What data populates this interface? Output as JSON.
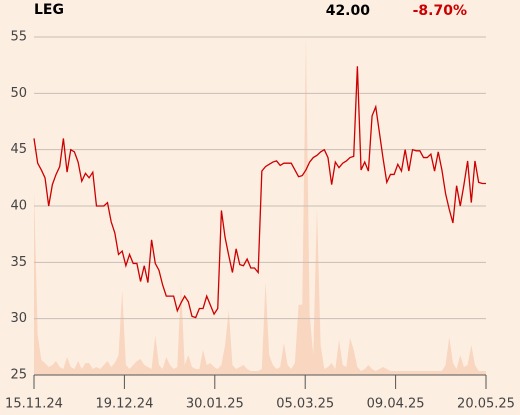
{
  "chart_data": {
    "type": "line",
    "title": "LEG",
    "price": "42.00",
    "change": "-8.70%",
    "change_color": "#cc0000",
    "color": "#cc0000",
    "volume_color": "#f9d6c0",
    "grid": true,
    "x": [
      0,
      1,
      2,
      3,
      4,
      5,
      6,
      7,
      8,
      9,
      10,
      11,
      12,
      13,
      14,
      15,
      16,
      17,
      18,
      19,
      20,
      21,
      22,
      23,
      24,
      25,
      26,
      27,
      28,
      29,
      30,
      31,
      32,
      33,
      34,
      35,
      36,
      37,
      38,
      39,
      40,
      41,
      42,
      43,
      44,
      45,
      46,
      47,
      48,
      49,
      50,
      51,
      52,
      53,
      54,
      55,
      56,
      57,
      58,
      59,
      60,
      61,
      62,
      63,
      64,
      65,
      66,
      67,
      68,
      69,
      70,
      71,
      72,
      73,
      74,
      75,
      76,
      77,
      78,
      79,
      80,
      81,
      82,
      83,
      84,
      85,
      86,
      87,
      88,
      89,
      90,
      91,
      92,
      93,
      94,
      95,
      96,
      97,
      98,
      99,
      100,
      101,
      102,
      103,
      104,
      105,
      106,
      107,
      108,
      109,
      110,
      111,
      112,
      113,
      114,
      115,
      116,
      117,
      118,
      119,
      120,
      121,
      122,
      123
    ],
    "values": [
      46.0,
      43.8,
      43.2,
      42.5,
      40.0,
      41.9,
      42.8,
      43.5,
      46.0,
      43.0,
      45.0,
      44.8,
      43.9,
      42.2,
      42.9,
      42.5,
      43.0,
      40.0,
      40.0,
      40.0,
      40.3,
      38.6,
      37.6,
      35.7,
      36.0,
      34.7,
      35.7,
      34.9,
      34.9,
      33.3,
      34.7,
      33.2,
      37.0,
      34.9,
      34.3,
      33.0,
      32.0,
      32.0,
      32.0,
      30.7,
      31.4,
      32.0,
      31.5,
      30.2,
      30.1,
      30.9,
      30.9,
      32.0,
      31.2,
      30.4,
      30.9,
      39.6,
      37.2,
      35.6,
      34.1,
      36.2,
      34.8,
      34.7,
      35.3,
      34.5,
      34.5,
      34.1,
      43.1,
      43.5,
      43.7,
      43.9,
      44.0,
      43.6,
      43.8,
      43.8,
      43.8,
      43.2,
      42.6,
      42.7,
      43.2,
      43.9,
      44.3,
      44.5,
      44.8,
      45.0,
      44.3,
      41.9,
      43.9,
      43.4,
      43.8,
      44.0,
      44.3,
      44.4,
      52.4,
      43.2,
      43.9,
      43.1,
      48.0,
      48.8,
      46.5,
      44.2,
      42.1,
      42.8,
      42.8,
      43.7,
      43.1,
      45.0,
      43.1,
      45.0,
      44.9,
      44.9,
      44.3,
      44.3,
      44.6,
      43.1,
      44.8,
      43.2,
      41.1,
      39.7,
      38.5,
      41.8,
      40.0,
      41.9,
      44.0,
      40.3,
      44.0,
      42.1,
      42.0,
      42.0
    ],
    "volume": [
      185,
      40,
      15,
      12,
      8,
      10,
      14,
      8,
      6,
      18,
      8,
      6,
      14,
      6,
      12,
      12,
      6,
      8,
      6,
      10,
      14,
      8,
      12,
      20,
      85,
      10,
      6,
      10,
      14,
      16,
      10,
      8,
      6,
      40,
      10,
      6,
      18,
      10,
      6,
      8,
      90,
      10,
      20,
      8,
      6,
      6,
      25,
      10,
      12,
      8,
      6,
      10,
      30,
      65,
      10,
      6,
      8,
      10,
      6,
      4,
      4,
      4,
      6,
      93,
      20,
      10,
      6,
      8,
      32,
      10,
      6,
      12,
      70,
      70,
      337,
      60,
      20,
      167,
      30,
      6,
      8,
      12,
      6,
      35,
      10,
      8,
      37,
      25,
      8,
      4,
      6,
      10,
      6,
      4,
      6,
      8,
      6,
      4,
      4,
      4,
      4,
      4,
      4,
      4,
      4,
      4,
      4,
      4,
      4,
      4,
      4,
      4,
      10,
      38,
      12,
      6,
      20,
      8,
      10,
      30,
      10,
      4,
      4,
      4
    ],
    "xlim": [
      0,
      123
    ],
    "xticks": [
      {
        "value": 0,
        "label": "15.11.24"
      },
      {
        "value": 24.6,
        "label": "19.12.24"
      },
      {
        "value": 49.2,
        "label": "30.01.25"
      },
      {
        "value": 73.8,
        "label": "05.03.25"
      },
      {
        "value": 98.4,
        "label": "09.04.25"
      },
      {
        "value": 123,
        "label": "20.05.25"
      }
    ],
    "ylim": [
      25,
      55
    ],
    "yticks": [
      25,
      30,
      35,
      40,
      45,
      50,
      55
    ]
  }
}
